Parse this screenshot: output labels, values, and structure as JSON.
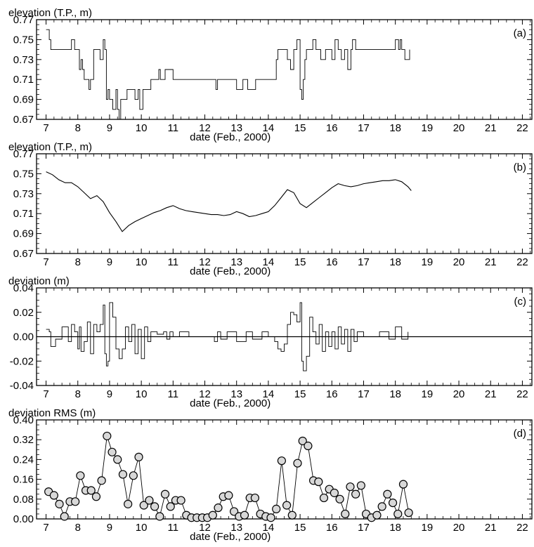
{
  "chart_data": [
    {
      "type": "line",
      "panel_label": "(a)",
      "ylabel": "elevation (T.P., m)",
      "xlabel": "date (Feb., 2000)",
      "xlim": [
        6.7,
        22.3
      ],
      "ylim": [
        0.67,
        0.77
      ],
      "yticks": [
        "0.67",
        "0.69",
        "0.71",
        "0.73",
        "0.75",
        "0.77"
      ],
      "xticks": [
        "7",
        "8",
        "9",
        "10",
        "11",
        "12",
        "13",
        "14",
        "15",
        "16",
        "17",
        "18",
        "19",
        "20",
        "21",
        "22"
      ],
      "x": [
        7.0,
        7.1,
        7.15,
        7.3,
        7.5,
        7.7,
        7.8,
        7.9,
        8.0,
        8.05,
        8.1,
        8.15,
        8.2,
        8.3,
        8.35,
        8.4,
        8.5,
        8.6,
        8.7,
        8.8,
        8.85,
        8.9,
        8.95,
        9.0,
        9.1,
        9.2,
        9.25,
        9.3,
        9.35,
        9.45,
        9.55,
        9.6,
        9.7,
        9.8,
        9.9,
        9.95,
        10.0,
        10.05,
        10.1,
        10.3,
        10.45,
        10.55,
        10.6,
        10.75,
        10.85,
        10.95,
        11.0,
        11.05,
        11.2,
        11.5,
        11.8,
        12.0,
        12.2,
        12.35,
        12.4,
        12.45,
        12.55,
        12.6,
        12.8,
        13.0,
        13.2,
        13.35,
        13.4,
        13.6,
        13.8,
        14.0,
        14.15,
        14.25,
        14.3,
        14.4,
        14.5,
        14.6,
        14.7,
        14.8,
        14.9,
        15.0,
        15.05,
        15.1,
        15.15,
        15.2,
        15.3,
        15.4,
        15.5,
        15.6,
        15.65,
        15.8,
        15.9,
        16.0,
        16.1,
        16.15,
        16.2,
        16.3,
        16.4,
        16.5,
        16.6,
        16.65,
        16.75,
        16.9,
        17.0,
        17.2,
        17.5,
        17.8,
        17.9,
        18.0,
        18.1,
        18.15,
        18.2,
        18.3,
        18.45
      ],
      "y": [
        0.76,
        0.75,
        0.74,
        0.74,
        0.74,
        0.74,
        0.75,
        0.74,
        0.74,
        0.72,
        0.73,
        0.72,
        0.71,
        0.71,
        0.7,
        0.71,
        0.74,
        0.74,
        0.73,
        0.75,
        0.74,
        0.69,
        0.7,
        0.69,
        0.68,
        0.7,
        0.68,
        0.67,
        0.69,
        0.69,
        0.7,
        0.7,
        0.7,
        0.69,
        0.7,
        0.68,
        0.68,
        0.7,
        0.7,
        0.71,
        0.71,
        0.72,
        0.71,
        0.72,
        0.72,
        0.72,
        0.71,
        0.71,
        0.71,
        0.71,
        0.71,
        0.71,
        0.71,
        0.7,
        0.71,
        0.71,
        0.71,
        0.71,
        0.71,
        0.7,
        0.71,
        0.7,
        0.7,
        0.71,
        0.71,
        0.71,
        0.71,
        0.73,
        0.74,
        0.74,
        0.74,
        0.73,
        0.72,
        0.74,
        0.75,
        0.7,
        0.69,
        0.71,
        0.73,
        0.74,
        0.74,
        0.75,
        0.74,
        0.74,
        0.73,
        0.74,
        0.74,
        0.73,
        0.75,
        0.75,
        0.74,
        0.73,
        0.74,
        0.72,
        0.74,
        0.75,
        0.74,
        0.74,
        0.74,
        0.74,
        0.74,
        0.74,
        0.74,
        0.75,
        0.74,
        0.75,
        0.74,
        0.73,
        0.74
      ]
    },
    {
      "type": "line",
      "panel_label": "(b)",
      "ylabel": "elevation (T.P., m)",
      "xlabel": "date (Feb., 2000)",
      "xlim": [
        6.7,
        22.3
      ],
      "ylim": [
        0.67,
        0.77
      ],
      "yticks": [
        "0.67",
        "0.69",
        "0.71",
        "0.73",
        "0.75",
        "0.77"
      ],
      "xticks": [
        "7",
        "8",
        "9",
        "10",
        "11",
        "12",
        "13",
        "14",
        "15",
        "16",
        "17",
        "18",
        "19",
        "20",
        "21",
        "22"
      ],
      "x": [
        7.0,
        7.2,
        7.4,
        7.6,
        7.8,
        8.0,
        8.2,
        8.4,
        8.6,
        8.8,
        9.0,
        9.2,
        9.4,
        9.6,
        9.8,
        10.0,
        10.2,
        10.4,
        10.6,
        10.8,
        11.0,
        11.2,
        11.4,
        11.6,
        11.8,
        12.0,
        12.2,
        12.4,
        12.6,
        12.8,
        13.0,
        13.2,
        13.4,
        13.6,
        13.8,
        14.0,
        14.2,
        14.4,
        14.6,
        14.8,
        15.0,
        15.2,
        15.4,
        15.6,
        15.8,
        16.0,
        16.2,
        16.4,
        16.6,
        16.8,
        17.0,
        17.2,
        17.4,
        17.6,
        17.8,
        18.0,
        18.2,
        18.4,
        18.5
      ],
      "y": [
        0.752,
        0.749,
        0.744,
        0.741,
        0.741,
        0.737,
        0.731,
        0.725,
        0.728,
        0.722,
        0.711,
        0.702,
        0.692,
        0.698,
        0.702,
        0.705,
        0.708,
        0.711,
        0.713,
        0.716,
        0.718,
        0.715,
        0.713,
        0.712,
        0.711,
        0.71,
        0.709,
        0.709,
        0.708,
        0.709,
        0.712,
        0.71,
        0.707,
        0.708,
        0.71,
        0.712,
        0.718,
        0.726,
        0.734,
        0.731,
        0.72,
        0.716,
        0.721,
        0.726,
        0.731,
        0.736,
        0.74,
        0.738,
        0.737,
        0.738,
        0.74,
        0.741,
        0.742,
        0.743,
        0.743,
        0.744,
        0.742,
        0.737,
        0.733
      ]
    },
    {
      "type": "line",
      "panel_label": "(c)",
      "ylabel": "deviation (m)",
      "xlabel": "date (Feb., 2000)",
      "xlim": [
        6.7,
        22.3
      ],
      "ylim": [
        -0.04,
        0.04
      ],
      "yticks": [
        "-0.04",
        "-0.02",
        "0.00",
        "0.02",
        "0.04"
      ],
      "xticks": [
        "7",
        "8",
        "9",
        "10",
        "11",
        "12",
        "13",
        "14",
        "15",
        "16",
        "17",
        "18",
        "19",
        "20",
        "21",
        "22"
      ],
      "zero_line": 0,
      "x": [
        7.0,
        7.1,
        7.15,
        7.3,
        7.5,
        7.7,
        7.8,
        7.9,
        8.0,
        8.05,
        8.1,
        8.2,
        8.3,
        8.4,
        8.5,
        8.6,
        8.7,
        8.8,
        8.85,
        8.9,
        8.95,
        9.0,
        9.1,
        9.2,
        9.3,
        9.4,
        9.5,
        9.6,
        9.7,
        9.8,
        9.9,
        10.0,
        10.1,
        10.2,
        10.3,
        10.5,
        10.7,
        10.8,
        10.9,
        11.0,
        11.2,
        11.5,
        12.0,
        12.3,
        12.4,
        12.5,
        12.7,
        13.0,
        13.3,
        13.5,
        13.8,
        14.0,
        14.2,
        14.3,
        14.4,
        14.5,
        14.6,
        14.7,
        14.8,
        14.9,
        15.0,
        15.05,
        15.1,
        15.2,
        15.3,
        15.4,
        15.5,
        15.6,
        15.7,
        15.8,
        15.9,
        16.0,
        16.1,
        16.2,
        16.3,
        16.4,
        16.5,
        16.6,
        16.7,
        16.8,
        17.0,
        17.5,
        17.8,
        18.0,
        18.2,
        18.4
      ],
      "y": [
        0.006,
        0.004,
        -0.008,
        -0.002,
        0.008,
        -0.004,
        0.01,
        0.004,
        -0.01,
        0.008,
        -0.012,
        -0.004,
        0.012,
        -0.014,
        0.01,
        0.004,
        0.01,
        0.026,
        -0.014,
        -0.024,
        -0.02,
        0.028,
        0.016,
        -0.01,
        -0.018,
        -0.01,
        0.008,
        -0.004,
        0.01,
        -0.014,
        0.006,
        -0.018,
        0.008,
        -0.004,
        0.004,
        0.002,
        0.004,
        -0.002,
        0.004,
        0.0,
        0.004,
        0.0,
        0.0,
        -0.004,
        0.004,
        -0.002,
        0.004,
        -0.004,
        0.004,
        -0.002,
        0.004,
        0.0,
        -0.004,
        -0.01,
        -0.012,
        -0.006,
        0.01,
        0.02,
        0.018,
        0.012,
        0.028,
        -0.02,
        -0.028,
        -0.016,
        0.016,
        0.004,
        -0.006,
        0.01,
        -0.012,
        0.004,
        -0.008,
        0.004,
        -0.01,
        0.008,
        -0.006,
        0.006,
        -0.012,
        0.006,
        -0.004,
        0.004,
        0.0,
        0.004,
        -0.002,
        0.008,
        -0.002,
        0.004
      ]
    },
    {
      "type": "scatter",
      "panel_label": "(d)",
      "ylabel": "deviation RMS (m)",
      "xlabel": "date (Feb., 2000)",
      "xlim": [
        6.7,
        22.3
      ],
      "ylim": [
        0.0,
        0.4
      ],
      "yticks": [
        "0.00",
        "0.08",
        "0.16",
        "0.24",
        "0.32",
        "0.40"
      ],
      "xticks": [
        "7",
        "8",
        "9",
        "10",
        "11",
        "12",
        "13",
        "14",
        "15",
        "16",
        "17",
        "18",
        "19",
        "20",
        "21",
        "22"
      ],
      "connected": true,
      "x": [
        7.08,
        7.25,
        7.42,
        7.58,
        7.75,
        7.92,
        8.08,
        8.25,
        8.42,
        8.58,
        8.75,
        8.92,
        9.08,
        9.25,
        9.42,
        9.58,
        9.75,
        9.92,
        10.08,
        10.25,
        10.42,
        10.58,
        10.75,
        10.92,
        11.08,
        11.25,
        11.42,
        11.58,
        11.75,
        11.92,
        12.08,
        12.25,
        12.42,
        12.58,
        12.75,
        12.92,
        13.08,
        13.25,
        13.42,
        13.58,
        13.75,
        13.92,
        14.08,
        14.25,
        14.42,
        14.58,
        14.75,
        14.92,
        15.08,
        15.25,
        15.42,
        15.58,
        15.75,
        15.92,
        16.08,
        16.25,
        16.42,
        16.58,
        16.75,
        16.92,
        17.08,
        17.25,
        17.42,
        17.58,
        17.75,
        17.92,
        18.08,
        18.25,
        18.42
      ],
      "y": [
        0.11,
        0.095,
        0.06,
        0.01,
        0.07,
        0.07,
        0.175,
        0.115,
        0.115,
        0.09,
        0.155,
        0.335,
        0.27,
        0.24,
        0.18,
        0.06,
        0.175,
        0.25,
        0.055,
        0.075,
        0.05,
        0.01,
        0.1,
        0.05,
        0.075,
        0.075,
        0.015,
        0.005,
        0.005,
        0.005,
        0.005,
        0.015,
        0.045,
        0.09,
        0.095,
        0.03,
        0.01,
        0.015,
        0.085,
        0.085,
        0.02,
        0.01,
        0.005,
        0.04,
        0.235,
        0.055,
        0.015,
        0.225,
        0.315,
        0.295,
        0.155,
        0.15,
        0.085,
        0.12,
        0.105,
        0.08,
        0.02,
        0.13,
        0.1,
        0.135,
        0.02,
        0.005,
        0.015,
        0.05,
        0.1,
        0.065,
        0.02,
        0.14,
        0.025
      ]
    }
  ]
}
